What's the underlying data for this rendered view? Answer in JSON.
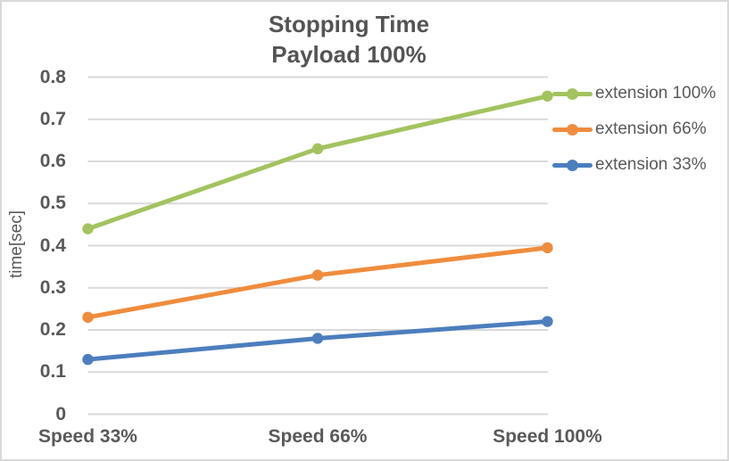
{
  "frame": {
    "background": "#FFFFFF",
    "border_color": "#D9D9D9",
    "text_color": "#595959",
    "title_color": "#545454",
    "gridline_color": "#D9D9D9"
  },
  "chart_data": {
    "type": "line",
    "title": "Stopping Time",
    "subtitle": "Payload 100%",
    "xlabel": "",
    "ylabel": "time[sec]",
    "categories": [
      "Speed 33%",
      "Speed 66%",
      "Speed 100%"
    ],
    "series": [
      {
        "name": "extension 100%",
        "color": "#A3C35F",
        "values": [
          0.44,
          0.63,
          0.755
        ]
      },
      {
        "name": "extension 66%",
        "color": "#F08C3D",
        "values": [
          0.23,
          0.33,
          0.395
        ]
      },
      {
        "name": "extension 33%",
        "color": "#4C7EBD",
        "values": [
          0.13,
          0.18,
          0.22
        ]
      }
    ],
    "ylim": [
      0,
      0.8
    ],
    "yticks": [
      "0",
      "0.1",
      "0.2",
      "0.3",
      "0.4",
      "0.5",
      "0.6",
      "0.7",
      "0.8"
    ],
    "grid": true,
    "marker": "circle",
    "legend_position": "right"
  }
}
